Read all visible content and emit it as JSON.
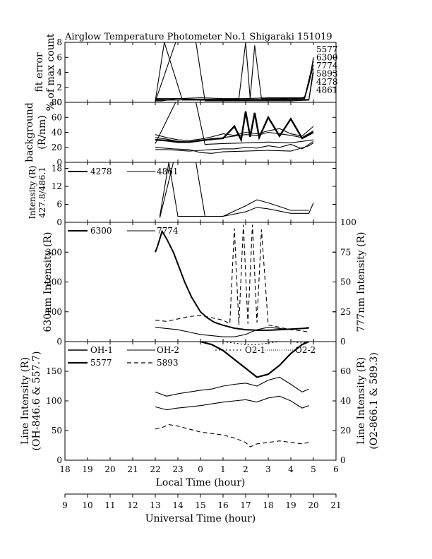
{
  "title": "Airglow Temperature Photometer No.1  Shigaraki  151019",
  "chart_data": [
    {
      "type": "line",
      "id": "fit_error",
      "ylabel": [
        "fit error",
        "% of max count"
      ],
      "ylim": [
        0,
        8
      ],
      "yticks": [
        "0",
        "2",
        "4",
        "6",
        "8"
      ],
      "legend": [
        "5577",
        "6300",
        "7774",
        "5893",
        "4278",
        "4861"
      ],
      "series": [
        {
          "name": "5577",
          "x": [
            13.0,
            14.0,
            15.0,
            16.0,
            16.7,
            17.0,
            17.2,
            17.4,
            17.7,
            18.5,
            19.0,
            19.3,
            19.6,
            19.7,
            19.8,
            19.9,
            20.0
          ],
          "y": [
            0.3,
            0.3,
            0.4,
            0.4,
            0.5,
            8.0,
            0.5,
            7.6,
            0.5,
            0.5,
            0.6,
            0.5,
            0.7,
            1.5,
            3.0,
            4.2,
            6.0
          ]
        },
        {
          "name": "6300",
          "x": [
            13.0,
            14.0,
            15.0,
            16.0,
            17.0,
            18.0,
            19.0,
            19.6,
            19.8,
            20.0
          ],
          "y": [
            0.4,
            0.5,
            0.4,
            0.4,
            0.4,
            0.4,
            0.5,
            0.5,
            3.0,
            5.5
          ]
        },
        {
          "name": "7774",
          "x": [
            13.0,
            13.3,
            14.0,
            15.0,
            16.0,
            17.0,
            18.0,
            19.0,
            19.6,
            19.8,
            20.0
          ],
          "y": [
            0.2,
            0.2,
            0.5,
            0.3,
            0.3,
            0.3,
            0.4,
            0.4,
            0.4,
            2.5,
            5.0
          ]
        },
        {
          "name": "5893",
          "x": [
            13.0,
            14.0,
            15.0,
            16.0,
            17.0,
            18.0,
            19.0,
            19.6,
            19.8,
            20.0
          ],
          "y": [
            0.5,
            0.5,
            0.6,
            0.5,
            0.5,
            0.6,
            0.6,
            0.6,
            2.8,
            5.8
          ]
        },
        {
          "name": "4278",
          "x": [
            13.0,
            13.4,
            14.2,
            15.0,
            16.0,
            17.0,
            18.0,
            19.0,
            19.8,
            20.0
          ],
          "y": [
            0.2,
            8.0,
            0.3,
            0.3,
            0.3,
            0.3,
            0.3,
            0.3,
            0.4,
            4.5
          ]
        },
        {
          "name": "4861",
          "x": [
            13.0,
            13.9,
            14.8,
            15.2,
            16.0,
            17.0,
            18.0,
            19.0,
            19.8,
            20.0
          ],
          "y": [
            0.1,
            8.0,
            8.0,
            0.2,
            0.2,
            0.2,
            0.2,
            0.2,
            0.3,
            4.0
          ]
        }
      ]
    },
    {
      "type": "line",
      "id": "background",
      "ylabel": [
        "background",
        "(R/nm)"
      ],
      "ylim": [
        0,
        80
      ],
      "yticks": [
        "0",
        "20",
        "40",
        "60",
        "80"
      ],
      "series": [
        {
          "name": "5577",
          "x": [
            13.0,
            13.5,
            14.0,
            14.5,
            15.0,
            15.5,
            16.0,
            16.5,
            16.8,
            17.0,
            17.2,
            17.4,
            17.6,
            18.0,
            18.5,
            19.0,
            19.5,
            20.0
          ],
          "y": [
            30,
            29,
            27,
            27,
            29,
            31,
            32,
            48,
            30,
            68,
            34,
            66,
            33,
            60,
            35,
            58,
            32,
            40
          ]
        },
        {
          "name": "6300",
          "x": [
            13.0,
            13.5,
            14.0,
            14.5,
            15.0,
            15.5,
            16.0,
            16.5,
            17.0,
            17.5,
            18.0,
            18.5,
            19.0,
            19.5,
            20.0
          ],
          "y": [
            37,
            33,
            30,
            29,
            31,
            34,
            38,
            36,
            40,
            38,
            42,
            45,
            38,
            35,
            48
          ]
        },
        {
          "name": "7774",
          "x": [
            13.0,
            13.5,
            14.0,
            14.5,
            15.0,
            15.5,
            16.0,
            16.5,
            17.0,
            17.5,
            18.0,
            18.5,
            19.0,
            19.5,
            20.0
          ],
          "y": [
            17,
            17,
            16,
            15,
            16,
            17,
            18,
            18,
            20,
            19,
            22,
            20,
            24,
            18,
            28
          ]
        },
        {
          "name": "5893",
          "x": [
            13.0,
            13.5,
            14.0,
            14.5,
            15.0,
            15.5,
            16.0,
            16.5,
            17.0,
            17.5,
            18.0,
            18.5,
            19.0,
            19.5,
            20.0
          ],
          "y": [
            33,
            31,
            28,
            27,
            29,
            30,
            33,
            35,
            37,
            36,
            40,
            38,
            36,
            33,
            42
          ]
        },
        {
          "name": "4278",
          "x": [
            13.0,
            13.8,
            14.5,
            15.0,
            15.5,
            16.0,
            17.0,
            18.0,
            19.0,
            19.8,
            20.0
          ],
          "y": [
            20,
            18,
            17,
            13,
            12,
            14,
            15,
            16,
            15,
            22,
            26
          ]
        },
        {
          "name": "4861",
          "x": [
            13.0,
            13.9,
            14.8,
            15.2,
            16.0,
            17.0,
            18.0,
            19.0,
            20.0
          ],
          "y": [
            25,
            80,
            80,
            24,
            25,
            26,
            27,
            26,
            30
          ]
        }
      ]
    },
    {
      "type": "line",
      "id": "blue_intensity",
      "ylabel": [
        "Intensity (R)",
        "427.8/486.1"
      ],
      "ylim": [
        0,
        20
      ],
      "yticks": [
        "0",
        "6",
        "12",
        "18"
      ],
      "legend": [
        "4278",
        "4861"
      ],
      "series": [
        {
          "name": "4278",
          "x": [
            13.2,
            13.6,
            14.0,
            15.0,
            16.0,
            17.0,
            17.5,
            18.0,
            19.0,
            19.8,
            20.0
          ],
          "y": [
            2.0,
            20.0,
            2.0,
            2.0,
            2.0,
            3.5,
            5.0,
            4.5,
            3.0,
            3.0,
            6.5
          ]
        },
        {
          "name": "4861",
          "x": [
            13.2,
            13.8,
            14.8,
            15.2,
            16.0,
            17.0,
            17.5,
            18.0,
            19.0,
            19.8
          ],
          "y": [
            1.5,
            20.0,
            20.0,
            2.0,
            2.0,
            5.5,
            7.5,
            6.5,
            4.0,
            4.0
          ]
        }
      ]
    },
    {
      "type": "line",
      "id": "red_intensity",
      "ylabel_left": "630nm Intensity (R)",
      "ylabel_right": "777nm Intensity (R)",
      "ylim_left": [
        0,
        400
      ],
      "ylim_right": [
        0,
        100
      ],
      "yticks_left": [
        "0",
        "100",
        "200",
        "300"
      ],
      "yticks_right": [
        "0",
        "25",
        "50",
        "75",
        "100"
      ],
      "legend": [
        "6300",
        "7774"
      ],
      "series": [
        {
          "name": "6300",
          "axis": "left",
          "x": [
            13.0,
            13.1,
            13.3,
            13.5,
            13.8,
            14.0,
            14.3,
            14.6,
            15.0,
            15.3,
            15.6,
            16.0,
            16.5,
            17.0,
            17.5,
            18.0,
            18.5,
            19.0,
            19.5,
            19.8
          ],
          "y": [
            300,
            320,
            370,
            345,
            300,
            260,
            200,
            150,
            100,
            80,
            65,
            55,
            45,
            40,
            38,
            38,
            40,
            42,
            44,
            46
          ]
        },
        {
          "name": "7774",
          "axis": "right",
          "x": [
            13.0,
            13.5,
            14.0,
            14.5,
            15.0,
            15.5,
            16.0,
            16.5,
            17.0,
            17.5,
            18.0,
            18.5,
            19.0,
            19.5,
            19.8
          ],
          "y": [
            12,
            11,
            10,
            8,
            6,
            5,
            4,
            4,
            6,
            10,
            12,
            11,
            10,
            11,
            12
          ]
        },
        {
          "name": "5893 (dashed)",
          "axis": "right",
          "style": "dashed",
          "x": [
            13.0,
            13.5,
            14.0,
            14.5,
            15.0,
            15.5,
            16.0,
            16.3,
            16.5,
            16.7,
            16.9,
            17.1,
            17.3,
            17.5,
            17.7,
            18.0,
            18.5,
            19.0,
            19.5,
            19.8
          ],
          "y": [
            18,
            17,
            19,
            21,
            22,
            20,
            18,
            15,
            95,
            14,
            98,
            15,
            98,
            16,
            94,
            14,
            12,
            10,
            9,
            8
          ]
        }
      ]
    },
    {
      "type": "line",
      "id": "line_intensity",
      "ylabel_left": [
        "Line Intensity (R)",
        "(OH-846.6 & 557.7)"
      ],
      "ylabel_right": [
        "Line Intensity (R)",
        "(O2-866.1 & 589.3)"
      ],
      "ylim_left": [
        0,
        200
      ],
      "ylim_right": [
        0,
        80
      ],
      "yticks_left": [
        "0",
        "50",
        "100",
        "150"
      ],
      "yticks_right": [
        "0",
        "20",
        "40",
        "60"
      ],
      "legend": [
        "OH-1",
        "OH-2",
        "O2-1",
        "O2-2",
        "5577",
        "5893"
      ],
      "series": [
        {
          "name": "OH-1",
          "axis": "left",
          "x": [
            13.0,
            13.5,
            14.0,
            14.5,
            15.0,
            15.5,
            16.0,
            16.5,
            17.0,
            17.5,
            18.0,
            18.5,
            19.0,
            19.5,
            19.8
          ],
          "y": [
            115,
            108,
            112,
            115,
            118,
            120,
            125,
            128,
            130,
            125,
            135,
            140,
            128,
            115,
            120
          ]
        },
        {
          "name": "OH-2",
          "axis": "left",
          "x": [
            13.0,
            13.5,
            14.0,
            14.5,
            15.0,
            15.5,
            16.0,
            16.5,
            17.0,
            17.5,
            18.0,
            18.5,
            19.0,
            19.5,
            19.8
          ],
          "y": [
            90,
            85,
            88,
            90,
            92,
            95,
            98,
            100,
            102,
            98,
            105,
            108,
            100,
            88,
            92
          ]
        },
        {
          "name": "O2-1",
          "axis": "right",
          "style": "dotted",
          "x": [
            16.0,
            16.5,
            17.0,
            17.5,
            18.0,
            18.5,
            19.0,
            19.5,
            19.8
          ],
          "y": [
            80,
            79,
            78,
            78,
            79,
            80,
            80,
            79,
            80
          ]
        },
        {
          "name": "O2-2",
          "axis": "right",
          "style": "dotted",
          "x": [
            18.5,
            19.0,
            19.5,
            19.8
          ],
          "y": [
            80,
            80,
            80,
            80
          ]
        },
        {
          "name": "5577",
          "axis": "left",
          "style": "bold",
          "x": [
            15.0,
            15.5,
            16.0,
            16.5,
            17.0,
            17.5,
            18.0,
            18.5,
            19.0,
            19.5,
            19.8
          ],
          "y": [
            200,
            195,
            185,
            170,
            155,
            140,
            145,
            160,
            180,
            195,
            200
          ]
        },
        {
          "name": "5893",
          "axis": "right",
          "style": "dashed",
          "x": [
            13.0,
            13.3,
            13.6,
            14.0,
            14.5,
            15.0,
            15.5,
            16.0,
            16.5,
            17.0,
            17.2,
            17.5,
            18.0,
            18.5,
            19.0,
            19.5,
            19.8
          ],
          "y": [
            21,
            22,
            24,
            23,
            21,
            19,
            18,
            17,
            15,
            12,
            9,
            11,
            12,
            13,
            12,
            11,
            12
          ]
        }
      ]
    }
  ],
  "xaxis_top": {
    "label": "Local Time (hour)",
    "ticks": [
      "18",
      "19",
      "20",
      "21",
      "22",
      "23",
      "0",
      "1",
      "2",
      "3",
      "4",
      "5",
      "6"
    ]
  },
  "xaxis_bottom": {
    "label": "Universal Time (hour)",
    "ticks": [
      "9",
      "10",
      "11",
      "12",
      "13",
      "14",
      "15",
      "16",
      "17",
      "18",
      "19",
      "20",
      "21"
    ]
  },
  "panel3_vertical_label": "427.8/486.1"
}
